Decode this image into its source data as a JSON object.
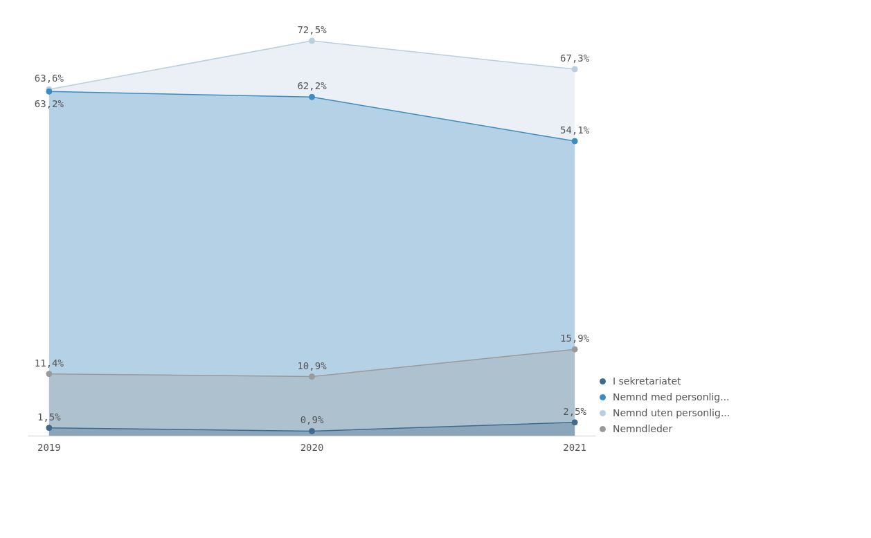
{
  "chart_data": {
    "type": "area",
    "categories": [
      "2019",
      "2020",
      "2021"
    ],
    "series": [
      {
        "name": "I sekretariatet",
        "color": "#3f6a8c",
        "values": [
          1.5,
          0.9,
          2.5
        ],
        "value_labels": [
          "1,5%",
          "0,9%",
          "2,5%"
        ]
      },
      {
        "name": "Nemnd med personlig...",
        "color": "#3a8cc4",
        "values": [
          63.2,
          62.2,
          54.1
        ],
        "value_labels": [
          "63,2%",
          "62,2%",
          "54,1%"
        ]
      },
      {
        "name": "Nemnd uten personlig...",
        "color": "#b9cedf",
        "values": [
          63.6,
          72.5,
          67.3
        ],
        "value_labels": [
          "63,6%",
          "72,5%",
          "67,3%"
        ]
      },
      {
        "name": "Nemndleder",
        "color": "#9a9a9a",
        "values": [
          11.4,
          10.9,
          15.9
        ],
        "value_labels": [
          "11,4%",
          "10,9%",
          "15,9%"
        ]
      }
    ],
    "tick_labels": "x",
    "grid": false,
    "marker": "circle",
    "legend": "bottom right"
  }
}
